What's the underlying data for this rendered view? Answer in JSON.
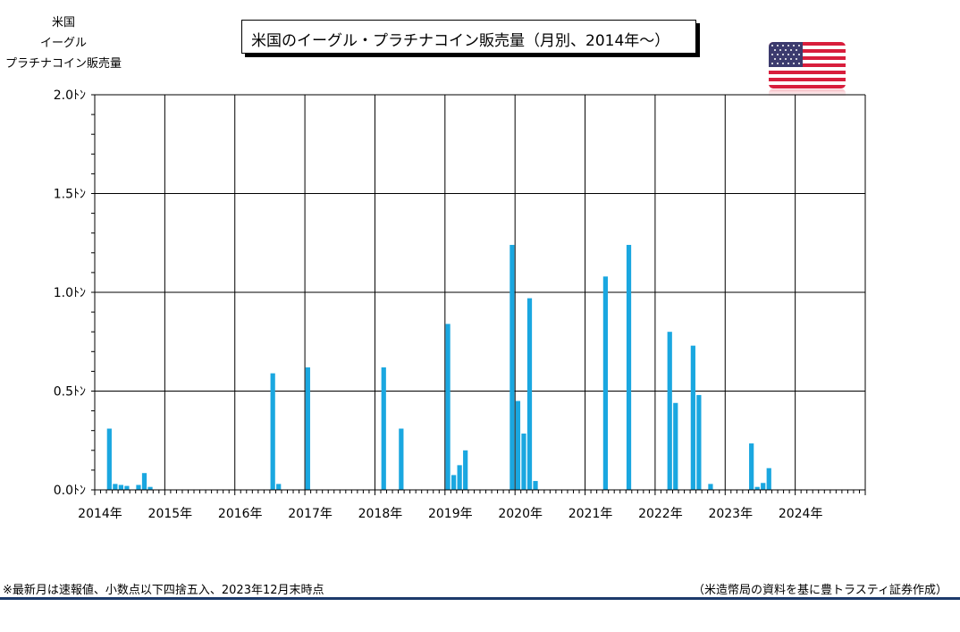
{
  "title": "米国のイーグル・プラチナコイン販売量（月別、2014年～）",
  "ylabel_lines": [
    "米国",
    "イーグル",
    "プラチナコイン販売量"
  ],
  "footnote": "※最新月は速報値、小数点以下四捨五入、2023年12月末時点",
  "source": "（米造幣局の資料を基に豊トラスティ証券作成）",
  "flag_icon": "us-flag-icon",
  "colors": {
    "bar": "#1aa7e0",
    "grid": "#000000",
    "rule": "#1c3a6b"
  },
  "chart_data": {
    "type": "bar",
    "title": "米国のイーグル・プラチナコイン販売量（月別、2014年～）",
    "ylabel": "米国 イーグル プラチナコイン販売量",
    "xlabel": "",
    "ylim": [
      0,
      2.0
    ],
    "yticks": [
      0,
      0.5,
      1.0,
      1.5,
      2.0
    ],
    "ytick_labels": [
      "0.0ﾄﾝ",
      "0.5ﾄﾝ",
      "1.0ﾄﾝ",
      "1.5ﾄﾝ",
      "2.0ﾄﾝ"
    ],
    "xlim_months": [
      "2014-01",
      "2024-12"
    ],
    "x_tick_labels": [
      "2014年",
      "2015年",
      "2016年",
      "2017年",
      "2018年",
      "2019年",
      "2020年",
      "2021年",
      "2022年",
      "2023年",
      "2024年"
    ],
    "grid": true,
    "series": [
      {
        "values": [
          {
            "month": "2014-03",
            "value": 0.31
          },
          {
            "month": "2014-04",
            "value": 0.03
          },
          {
            "month": "2014-05",
            "value": 0.025
          },
          {
            "month": "2014-06",
            "value": 0.02
          },
          {
            "month": "2014-08",
            "value": 0.025
          },
          {
            "month": "2014-09",
            "value": 0.085
          },
          {
            "month": "2014-10",
            "value": 0.015
          },
          {
            "month": "2016-07",
            "value": 0.59
          },
          {
            "month": "2016-08",
            "value": 0.03
          },
          {
            "month": "2017-01",
            "value": 0.62
          },
          {
            "month": "2018-02",
            "value": 0.62
          },
          {
            "month": "2018-05",
            "value": 0.31
          },
          {
            "month": "2019-01",
            "value": 0.84
          },
          {
            "month": "2019-02",
            "value": 0.075
          },
          {
            "month": "2019-03",
            "value": 0.125
          },
          {
            "month": "2019-04",
            "value": 0.2
          },
          {
            "month": "2019-12",
            "value": 1.24
          },
          {
            "month": "2020-01",
            "value": 0.45
          },
          {
            "month": "2020-02",
            "value": 0.285
          },
          {
            "month": "2020-03",
            "value": 0.97
          },
          {
            "month": "2020-04",
            "value": 0.045
          },
          {
            "month": "2021-04",
            "value": 1.08
          },
          {
            "month": "2021-08",
            "value": 1.24
          },
          {
            "month": "2022-03",
            "value": 0.8
          },
          {
            "month": "2022-04",
            "value": 0.44
          },
          {
            "month": "2022-07",
            "value": 0.73
          },
          {
            "month": "2022-08",
            "value": 0.48
          },
          {
            "month": "2022-10",
            "value": 0.03
          },
          {
            "month": "2023-05",
            "value": 0.235
          },
          {
            "month": "2023-06",
            "value": 0.015
          },
          {
            "month": "2023-07",
            "value": 0.035
          },
          {
            "month": "2023-08",
            "value": 0.11
          }
        ]
      }
    ]
  }
}
